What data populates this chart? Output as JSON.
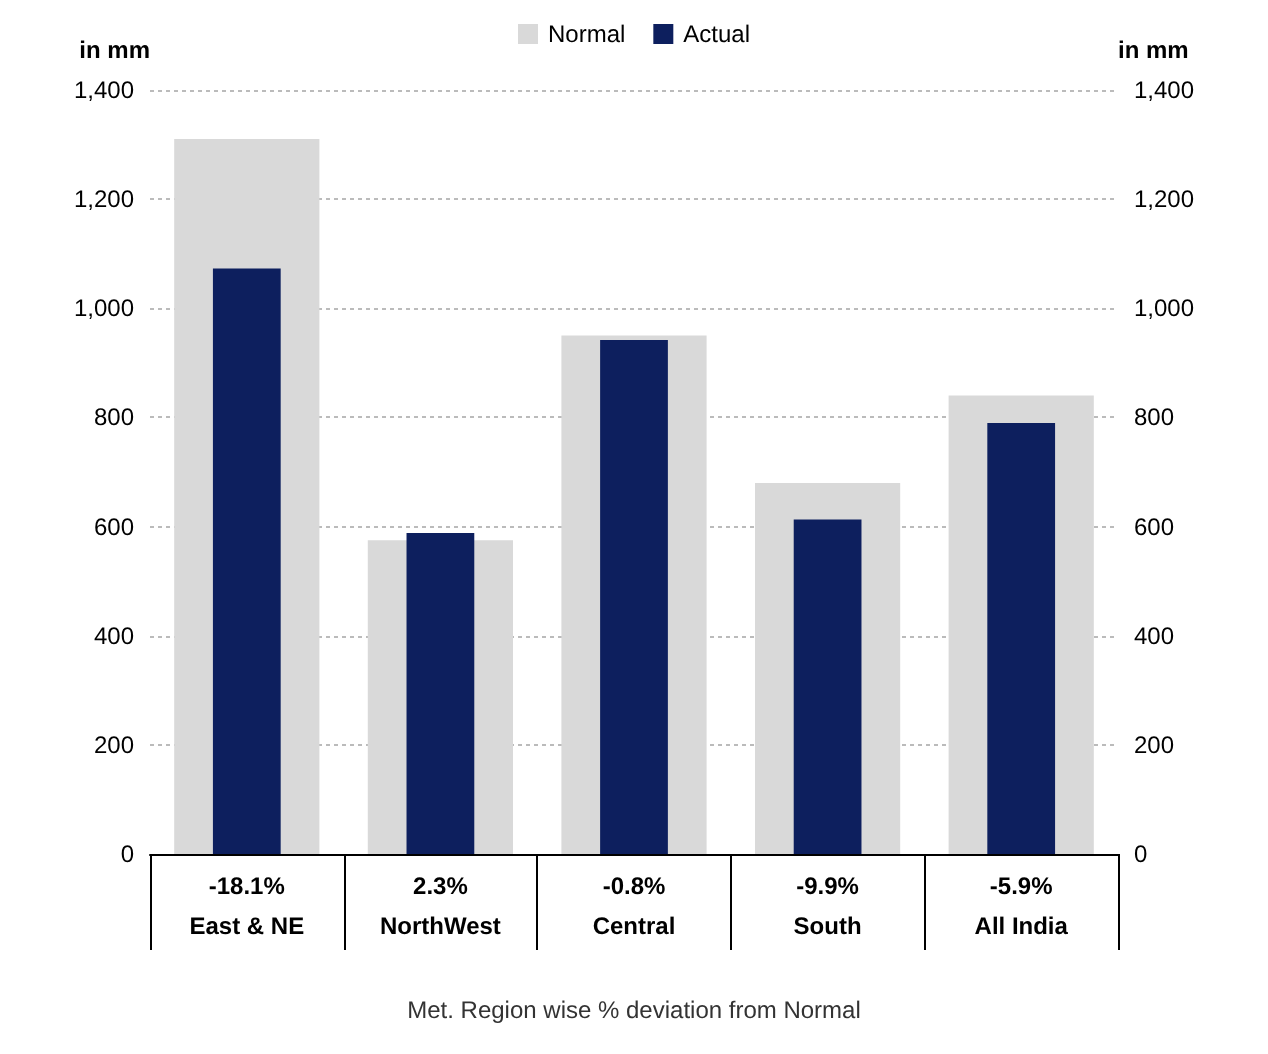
{
  "chart_data": {
    "type": "bar",
    "categories": [
      "East & NE",
      "NorthWest",
      "Central",
      "South",
      "All India"
    ],
    "series": [
      {
        "name": "Normal",
        "color": "#d9d9d9",
        "values": [
          1310,
          575,
          950,
          680,
          840
        ]
      },
      {
        "name": "Actual",
        "color": "#0d1f5e",
        "values": [
          1073,
          588,
          942,
          613,
          790
        ]
      }
    ],
    "ylabel": "in mm",
    "y2label": "in mm",
    "xlabel": "Met. Region wise % deviation from Normal",
    "ylim": [
      0,
      1400
    ],
    "yticks": [
      0,
      200,
      400,
      600,
      800,
      {
        "value": 1000,
        "label": "1,000"
      },
      {
        "value": 1200,
        "label": "1,200"
      },
      {
        "value": 1400,
        "label": "1,400"
      }
    ],
    "y2lim": [
      0,
      1400
    ],
    "y2ticks": [
      0,
      200,
      400,
      600,
      800,
      {
        "value": 1000,
        "label": "1,000"
      },
      {
        "value": 1200,
        "label": "1,200"
      },
      {
        "value": 1400,
        "label": "1,400"
      }
    ],
    "annotations": [
      "-18.1%",
      "2.3%",
      "-0.8%",
      "-9.9%",
      "-5.9%"
    ],
    "grid": "y",
    "legend": "top"
  }
}
